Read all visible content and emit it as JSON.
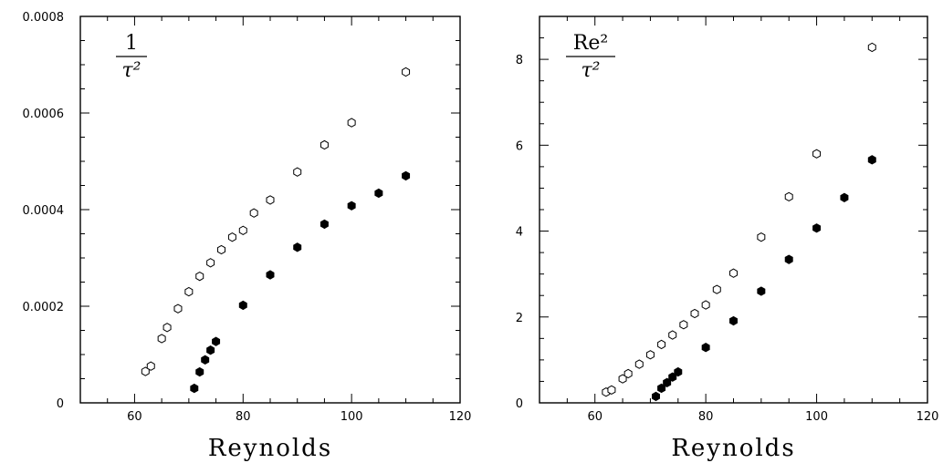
{
  "chart_data": [
    {
      "type": "scatter",
      "panel_label": {
        "numerator": "1",
        "denominator": "τ²"
      },
      "xlabel": "Reynolds",
      "ylabel": "",
      "xlim": [
        50,
        120
      ],
      "ylim": [
        0,
        0.0008
      ],
      "xticks": [
        60,
        80,
        100,
        120
      ],
      "yticks": [
        0,
        0.0002,
        0.0004,
        0.0006,
        0.0008
      ],
      "ytick_labels": [
        "0",
        "0.0002",
        "0.0004",
        "0.0006",
        "0.0008"
      ],
      "series": [
        {
          "marker": "open-hexagon",
          "x": [
            62,
            63,
            65,
            66,
            68,
            70,
            72,
            74,
            76,
            78,
            80,
            82,
            85,
            90,
            95,
            100,
            110
          ],
          "y": [
            6.5e-05,
            7.6e-05,
            0.000133,
            0.000156,
            0.000195,
            0.00023,
            0.000262,
            0.00029,
            0.000317,
            0.000343,
            0.000357,
            0.000393,
            0.00042,
            0.000478,
            0.000534,
            0.00058,
            0.000685
          ]
        },
        {
          "marker": "filled-hexagon",
          "x": [
            71,
            72,
            73,
            74,
            75,
            80,
            85,
            90,
            95,
            100,
            105,
            110
          ],
          "y": [
            3e-05,
            6.4e-05,
            8.9e-05,
            0.000109,
            0.000127,
            0.000202,
            0.000265,
            0.000322,
            0.00037,
            0.000408,
            0.000434,
            0.00047
          ]
        }
      ]
    },
    {
      "type": "scatter",
      "panel_label": {
        "numerator": "Re²",
        "denominator": "τ²"
      },
      "xlabel": "Reynolds",
      "ylabel": "",
      "xlim": [
        50,
        120
      ],
      "ylim": [
        0,
        9
      ],
      "xticks": [
        60,
        80,
        100,
        120
      ],
      "yticks": [
        0,
        2,
        4,
        6,
        8
      ],
      "ytick_labels": [
        "0",
        "2",
        "4",
        "6",
        "8"
      ],
      "series": [
        {
          "marker": "open-hexagon",
          "x": [
            62,
            63,
            65,
            66,
            68,
            70,
            72,
            74,
            76,
            78,
            80,
            82,
            85,
            90,
            95,
            100,
            110
          ],
          "y": [
            0.25,
            0.3,
            0.56,
            0.68,
            0.9,
            1.12,
            1.36,
            1.58,
            1.82,
            2.08,
            2.28,
            2.64,
            3.02,
            3.86,
            4.8,
            5.8,
            8.28
          ]
        },
        {
          "marker": "filled-hexagon",
          "x": [
            71,
            72,
            73,
            74,
            75,
            80,
            85,
            90,
            95,
            100,
            105,
            110
          ],
          "y": [
            0.15,
            0.34,
            0.47,
            0.6,
            0.72,
            1.29,
            1.91,
            2.6,
            3.34,
            4.07,
            4.78,
            5.66
          ]
        }
      ]
    }
  ]
}
